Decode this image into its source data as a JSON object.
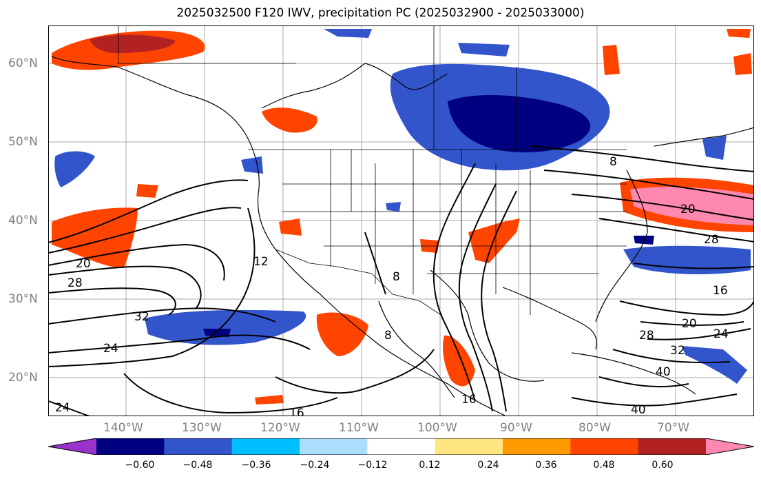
{
  "title": "2025032500 F120 IWV, precipitation PC (2025032900 - 2025033000)",
  "lat_labels": [
    "60°N",
    "50°N",
    "40°N",
    "30°N",
    "20°N"
  ],
  "lon_labels": [
    "140°W",
    "130°W",
    "120°W",
    "110°W",
    "100°W",
    "90°W",
    "80°W",
    "70°W"
  ],
  "contour_labels": [
    "20",
    "28",
    "24",
    "32",
    "24",
    "12",
    "16",
    "8",
    "8",
    "20",
    "28",
    "16",
    "20",
    "24",
    "28",
    "32",
    "40",
    "40",
    "16",
    "8"
  ],
  "colorbar": {
    "ticks": [
      "−0.60",
      "−0.48",
      "−0.36",
      "−0.24",
      "−0.12",
      "0.12",
      "0.24",
      "0.36",
      "0.48",
      "0.60"
    ],
    "colors": [
      "#9933cc",
      "#000080",
      "#3355cc",
      "#00bfff",
      "#aaddff",
      "#ffffff",
      "#ffe680",
      "#ff9900",
      "#ff4400",
      "#b22222",
      "#ff88b0"
    ]
  }
}
